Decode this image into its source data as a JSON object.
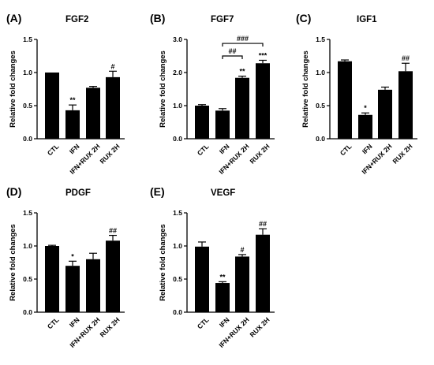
{
  "chart_data": [
    {
      "type": "bar",
      "panel": "(A)",
      "title": "FGF2",
      "ylabel": "Relative fold changes",
      "categories": [
        "CTL",
        "IFN",
        "IFN+RUX 2H",
        "RUX 2H"
      ],
      "values": [
        1.0,
        0.43,
        0.77,
        0.93
      ],
      "errors": [
        0.0,
        0.08,
        0.02,
        0.09
      ],
      "annotations": [
        "",
        "**",
        "",
        "#"
      ],
      "ylim": [
        0,
        1.5
      ],
      "yticks": [
        "0.0",
        "0.5",
        "1.0",
        "1.5"
      ],
      "brackets": []
    },
    {
      "type": "bar",
      "panel": "(B)",
      "title": "FGF7",
      "ylabel": "Relative fold changes",
      "categories": [
        "CTL",
        "IFN",
        "IFN+RUX 2H",
        "RUX 2H"
      ],
      "values": [
        1.0,
        0.85,
        1.84,
        2.28
      ],
      "errors": [
        0.03,
        0.06,
        0.05,
        0.09
      ],
      "annotations": [
        "",
        "",
        "**",
        "***"
      ],
      "ylim": [
        0,
        3.0
      ],
      "yticks": [
        "0.0",
        "1.0",
        "2.0",
        "3.0"
      ],
      "brackets": [
        {
          "from": 1,
          "to": 2,
          "label": "##",
          "y": 2.5
        },
        {
          "from": 1,
          "to": 3,
          "label": "###",
          "y": 2.88
        }
      ]
    },
    {
      "type": "bar",
      "panel": "(C)",
      "title": "IGF1",
      "ylabel": "Relative fold changes",
      "categories": [
        "CTL",
        "IFN",
        "IFN+RUX 2H",
        "RUX 2H"
      ],
      "values": [
        1.17,
        0.36,
        0.74,
        1.02
      ],
      "errors": [
        0.02,
        0.03,
        0.04,
        0.12
      ],
      "annotations": [
        "",
        "*",
        "",
        "##"
      ],
      "ylim": [
        0,
        1.5
      ],
      "yticks": [
        "0.0",
        "0.5",
        "1.0",
        "1.5"
      ],
      "brackets": []
    },
    {
      "type": "bar",
      "panel": "(D)",
      "title": "PDGF",
      "ylabel": "Relative fold changes",
      "categories": [
        "CTL",
        "IFN",
        "IFN+RUX 2H",
        "RUX 2H"
      ],
      "values": [
        1.0,
        0.7,
        0.8,
        1.08
      ],
      "errors": [
        0.01,
        0.07,
        0.09,
        0.08
      ],
      "annotations": [
        "",
        "*",
        "",
        "##"
      ],
      "ylim": [
        0,
        1.5
      ],
      "yticks": [
        "0.0",
        "0.5",
        "1.0",
        "1.5"
      ],
      "brackets": []
    },
    {
      "type": "bar",
      "panel": "(E)",
      "title": "VEGF",
      "ylabel": "Relative fold changes",
      "categories": [
        "CTL",
        "IFN",
        "IFN+RUX 2H",
        "RUX 2H"
      ],
      "values": [
        0.99,
        0.44,
        0.84,
        1.17
      ],
      "errors": [
        0.07,
        0.02,
        0.03,
        0.09
      ],
      "annotations": [
        "",
        "**",
        "#",
        "##"
      ],
      "ylim": [
        0,
        1.5
      ],
      "yticks": [
        "0.0",
        "0.5",
        "1.0",
        "1.5"
      ],
      "brackets": []
    }
  ],
  "colors": {
    "bar": "#000000",
    "axis": "#000000",
    "background": "#ffffff"
  },
  "grid": false
}
